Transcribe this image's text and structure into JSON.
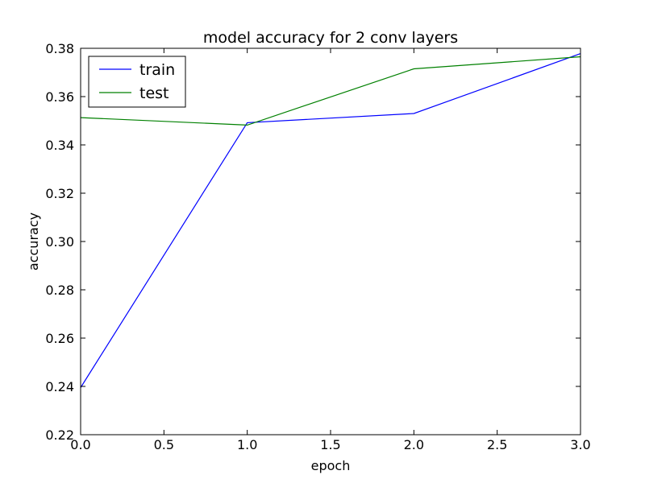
{
  "chart_data": {
    "type": "line",
    "title": "model accuracy for 2 conv layers",
    "xlabel": "epoch",
    "ylabel": "accuracy",
    "xlim": [
      0.0,
      3.0
    ],
    "ylim": [
      0.22,
      0.38
    ],
    "xticks": [
      0.0,
      0.5,
      1.0,
      1.5,
      2.0,
      2.5,
      3.0
    ],
    "xtick_labels": [
      "0.0",
      "0.5",
      "1.0",
      "1.5",
      "2.0",
      "2.5",
      "3.0"
    ],
    "yticks": [
      0.22,
      0.24,
      0.26,
      0.28,
      0.3,
      0.32,
      0.34,
      0.36,
      0.38
    ],
    "ytick_labels": [
      "0.22",
      "0.24",
      "0.26",
      "0.28",
      "0.30",
      "0.32",
      "0.34",
      "0.36",
      "0.38"
    ],
    "x": [
      0,
      1,
      2,
      3
    ],
    "series": [
      {
        "name": "train",
        "color": "#0000ff",
        "values": [
          0.2395,
          0.3492,
          0.353,
          0.3778
        ]
      },
      {
        "name": "test",
        "color": "#008000",
        "values": [
          0.3513,
          0.3482,
          0.3715,
          0.3765
        ]
      }
    ],
    "grid": false,
    "legend": "top-left"
  }
}
